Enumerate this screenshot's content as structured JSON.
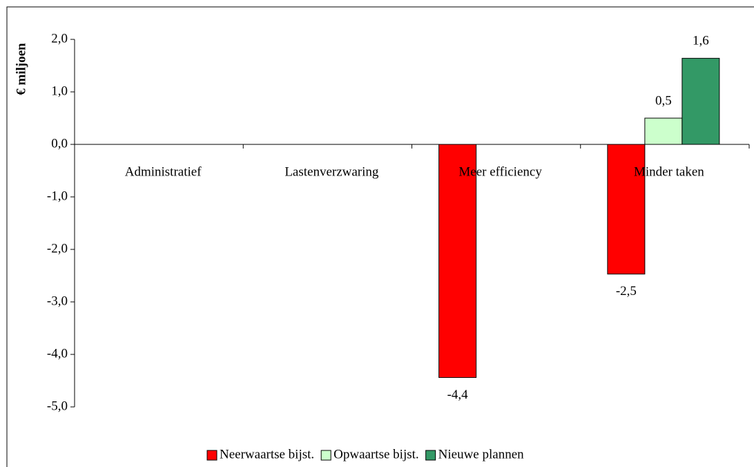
{
  "chart_data": {
    "type": "bar",
    "ylabel": "€ miljoen",
    "categories": [
      "Administratief",
      "Lastenverzwaring",
      "Meer efficiency",
      "Minder taken"
    ],
    "series": [
      {
        "name": "Neerwaartse bijst.",
        "color": "#ff0000",
        "values": [
          null,
          null,
          -4.44,
          -2.47
        ],
        "value_labels": [
          null,
          null,
          "-4,4",
          "-2,5"
        ]
      },
      {
        "name": "Opwaartse bijst.",
        "color": "#ccffcc",
        "values": [
          null,
          null,
          null,
          0.5
        ],
        "value_labels": [
          null,
          null,
          null,
          "0,5"
        ]
      },
      {
        "name": "Nieuwe plannen",
        "color": "#339966",
        "values": [
          null,
          null,
          null,
          1.64
        ],
        "value_labels": [
          null,
          null,
          null,
          "1,6"
        ]
      }
    ],
    "ylim": [
      -5,
      2
    ],
    "yticks": [
      {
        "value": 2,
        "label": "2,0"
      },
      {
        "value": 1,
        "label": "1,0"
      },
      {
        "value": 0,
        "label": "0,0"
      },
      {
        "value": -1,
        "label": "-1,0"
      },
      {
        "value": -2,
        "label": "-2,0"
      },
      {
        "value": -3,
        "label": "-3,0"
      },
      {
        "value": -4,
        "label": "-4,0"
      },
      {
        "value": -5,
        "label": "-5,0"
      }
    ],
    "legend": "bottom"
  }
}
